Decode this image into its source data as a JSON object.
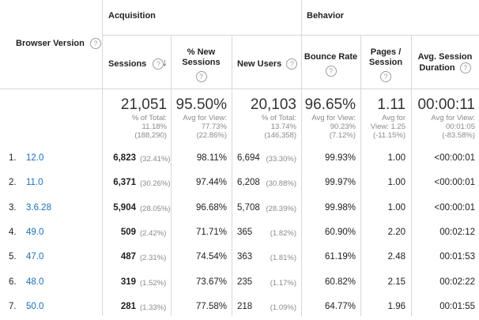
{
  "headers": {
    "dimension": "Browser Version",
    "acquisition": "Acquisition",
    "behavior": "Behavior",
    "sessions": "Sessions",
    "new_sessions_pct_l1": "% New",
    "new_sessions_pct_l2": "Sessions",
    "new_users": "New Users",
    "bounce_rate": "Bounce Rate",
    "pages_per_session_l1": "Pages /",
    "pages_per_session_l2": "Session",
    "avg_duration_l1": "Avg. Session",
    "avg_duration_l2": "Duration"
  },
  "help_glyph": "?",
  "sort_glyph": "↓",
  "totals": {
    "sessions": {
      "value": "21,051",
      "l1": "% of Total:",
      "l2": "11.18%",
      "l3": "(188,290)"
    },
    "new_sessions_pct": {
      "value": "95.50%",
      "l1": "Avg for View:",
      "l2": "77.73%",
      "l3": "(22.86%)"
    },
    "new_users": {
      "value": "20,103",
      "l1": "% of Total:",
      "l2": "13.74%",
      "l3": "(146,358)"
    },
    "bounce_rate": {
      "value": "96.65%",
      "l1": "Avg for View:",
      "l2": "90.23%",
      "l3": "(7.12%)"
    },
    "pages_per_session": {
      "value": "1.11",
      "l1": "Avg for",
      "l2": "View: 1.25",
      "l3": "(-11.15%)"
    },
    "avg_duration": {
      "value": "00:00:11",
      "l1": "Avg for View:",
      "l2": "00:01:05",
      "l3": "(-83.58%)"
    }
  },
  "rows": [
    {
      "idx": "1.",
      "version": "12.0",
      "sessions": "6,823",
      "sessions_pct": "(32.41%)",
      "new_pct": "98.11%",
      "new_users": "6,694",
      "new_users_pct": "(33.30%)",
      "bounce": "99.93%",
      "pages": "1.00",
      "duration": "<00:00:01"
    },
    {
      "idx": "2.",
      "version": "11.0",
      "sessions": "6,371",
      "sessions_pct": "(30.26%)",
      "new_pct": "97.44%",
      "new_users": "6,208",
      "new_users_pct": "(30.88%)",
      "bounce": "99.97%",
      "pages": "1.00",
      "duration": "<00:00:01"
    },
    {
      "idx": "3.",
      "version": "3.6.28",
      "sessions": "5,904",
      "sessions_pct": "(28.05%)",
      "new_pct": "96.68%",
      "new_users": "5,708",
      "new_users_pct": "(28.39%)",
      "bounce": "99.98%",
      "pages": "1.00",
      "duration": "<00:00:01"
    },
    {
      "idx": "4.",
      "version": "49.0",
      "sessions": "509",
      "sessions_pct": "(2.42%)",
      "new_pct": "71.71%",
      "new_users": "365",
      "new_users_pct": "(1.82%)",
      "bounce": "60.90%",
      "pages": "2.20",
      "duration": "00:02:12"
    },
    {
      "idx": "5.",
      "version": "47.0",
      "sessions": "487",
      "sessions_pct": "(2.31%)",
      "new_pct": "74.54%",
      "new_users": "363",
      "new_users_pct": "(1.81%)",
      "bounce": "61.19%",
      "pages": "2.48",
      "duration": "00:01:53"
    },
    {
      "idx": "6.",
      "version": "48.0",
      "sessions": "319",
      "sessions_pct": "(1.52%)",
      "new_pct": "73.67%",
      "new_users": "235",
      "new_users_pct": "(1.17%)",
      "bounce": "60.82%",
      "pages": "2.15",
      "duration": "00:02:22"
    },
    {
      "idx": "7.",
      "version": "50.0",
      "sessions": "281",
      "sessions_pct": "(1.33%)",
      "new_pct": "77.58%",
      "new_users": "218",
      "new_users_pct": "(1.09%)",
      "bounce": "64.77%",
      "pages": "1.96",
      "duration": "00:01:55"
    }
  ]
}
